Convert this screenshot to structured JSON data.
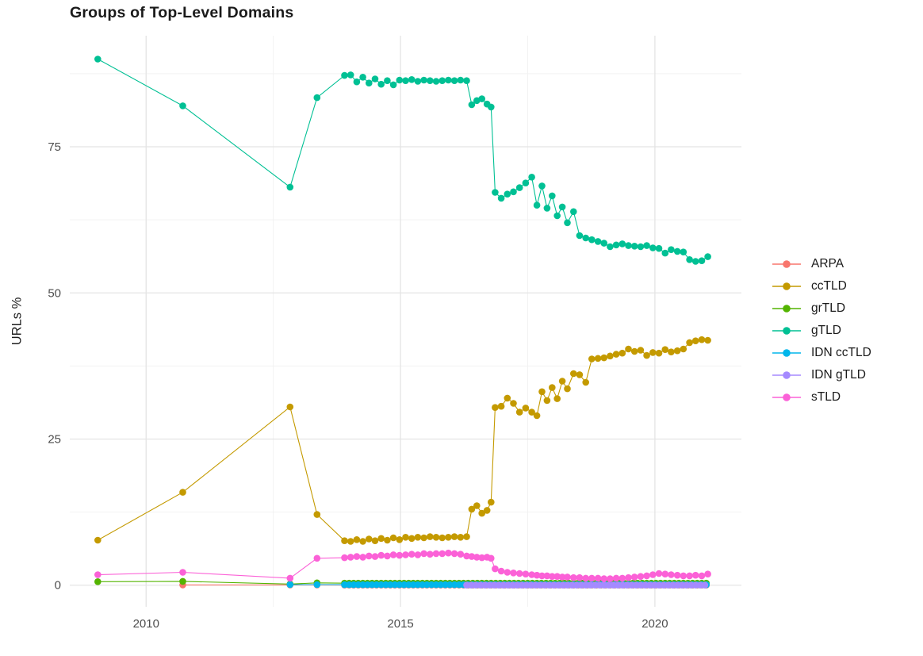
{
  "title": "Groups of Top-Level Domains",
  "colors": {
    "background": "#FFFFFF",
    "grid_major": "#E4E4E4",
    "grid_minor": "#F2F2F2",
    "tick_label": "#4D4D4D",
    "title_text": "#1A1A1A"
  },
  "chart_data": {
    "type": "line",
    "title": "Groups of Top-Level Domains",
    "xlabel": "",
    "ylabel": "URLs %",
    "grid": true,
    "legend_position": "right",
    "x_ticks": [
      "2010",
      "2015",
      "2020"
    ],
    "x_tick_values": [
      2010,
      2015,
      2020
    ],
    "x_minor": [
      2012.5,
      2017.5
    ],
    "y_ticks": [
      "0",
      "25",
      "50",
      "75"
    ],
    "y_tick_values": [
      0,
      25,
      50,
      75
    ],
    "y_minor": [
      12.5,
      37.5,
      62.5,
      87.5
    ],
    "x_range": [
      2008.5,
      2021.7
    ],
    "y_range": [
      -3.7,
      94
    ],
    "series": [
      {
        "name": "ARPA",
        "color": "#F8766D",
        "points": [
          [
            2010.72,
            0.05
          ],
          [
            2012.83,
            0.04
          ],
          [
            2013.36,
            0.04
          ]
        ],
        "flat": {
          "from": 2013.9,
          "to": 2021.04,
          "step": 0.09,
          "value": 0.02
        }
      },
      {
        "name": "ccTLD",
        "color": "#C49A00",
        "points": [
          [
            2009.05,
            7.7
          ],
          [
            2010.72,
            15.9
          ],
          [
            2012.83,
            30.5
          ],
          [
            2013.36,
            12.1
          ],
          [
            2013.9,
            7.6
          ],
          [
            2014.02,
            7.5
          ],
          [
            2014.14,
            7.8
          ],
          [
            2014.26,
            7.5
          ],
          [
            2014.38,
            7.9
          ],
          [
            2014.5,
            7.6
          ],
          [
            2014.62,
            8.0
          ],
          [
            2014.74,
            7.7
          ],
          [
            2014.86,
            8.1
          ],
          [
            2014.98,
            7.8
          ],
          [
            2015.1,
            8.2
          ],
          [
            2015.22,
            8.0
          ],
          [
            2015.34,
            8.2
          ],
          [
            2015.46,
            8.1
          ],
          [
            2015.58,
            8.3
          ],
          [
            2015.7,
            8.2
          ],
          [
            2015.82,
            8.1
          ],
          [
            2015.94,
            8.2
          ],
          [
            2016.06,
            8.3
          ],
          [
            2016.18,
            8.2
          ],
          [
            2016.3,
            8.3
          ],
          [
            2016.4,
            13.0
          ],
          [
            2016.5,
            13.6
          ],
          [
            2016.6,
            12.3
          ],
          [
            2016.7,
            12.8
          ],
          [
            2016.78,
            14.2
          ],
          [
            2016.86,
            30.4
          ],
          [
            2016.98,
            30.6
          ],
          [
            2017.1,
            32.0
          ],
          [
            2017.22,
            31.1
          ],
          [
            2017.34,
            29.6
          ],
          [
            2017.46,
            30.3
          ],
          [
            2017.58,
            29.6
          ],
          [
            2017.68,
            29.0
          ],
          [
            2017.78,
            33.1
          ],
          [
            2017.88,
            31.6
          ],
          [
            2017.98,
            33.8
          ],
          [
            2018.08,
            31.9
          ],
          [
            2018.18,
            34.9
          ],
          [
            2018.28,
            33.6
          ],
          [
            2018.4,
            36.2
          ],
          [
            2018.52,
            36.0
          ],
          [
            2018.64,
            34.7
          ],
          [
            2018.76,
            38.7
          ],
          [
            2018.88,
            38.8
          ],
          [
            2019.0,
            38.9
          ],
          [
            2019.12,
            39.2
          ],
          [
            2019.24,
            39.5
          ],
          [
            2019.36,
            39.7
          ],
          [
            2019.48,
            40.4
          ],
          [
            2019.6,
            40.0
          ],
          [
            2019.72,
            40.2
          ],
          [
            2019.84,
            39.3
          ],
          [
            2019.96,
            39.8
          ],
          [
            2020.08,
            39.7
          ],
          [
            2020.2,
            40.3
          ],
          [
            2020.32,
            39.9
          ],
          [
            2020.44,
            40.1
          ],
          [
            2020.56,
            40.4
          ],
          [
            2020.68,
            41.5
          ],
          [
            2020.8,
            41.8
          ],
          [
            2020.92,
            42.0
          ],
          [
            2021.04,
            41.9
          ]
        ]
      },
      {
        "name": "grTLD",
        "color": "#53B400",
        "points": [
          [
            2009.05,
            0.6
          ],
          [
            2010.72,
            0.65
          ],
          [
            2012.83,
            0.2
          ],
          [
            2013.36,
            0.4
          ]
        ],
        "flat": {
          "from": 2013.9,
          "to": 2021.04,
          "step": 0.09,
          "value": 0.35
        }
      },
      {
        "name": "gTLD",
        "color": "#00C094",
        "points": [
          [
            2009.05,
            90.0
          ],
          [
            2010.72,
            82.0
          ],
          [
            2012.83,
            68.1
          ],
          [
            2013.36,
            83.4
          ],
          [
            2013.9,
            87.2
          ],
          [
            2014.02,
            87.3
          ],
          [
            2014.14,
            86.1
          ],
          [
            2014.26,
            86.9
          ],
          [
            2014.38,
            85.9
          ],
          [
            2014.5,
            86.6
          ],
          [
            2014.62,
            85.7
          ],
          [
            2014.74,
            86.3
          ],
          [
            2014.86,
            85.6
          ],
          [
            2014.98,
            86.4
          ],
          [
            2015.1,
            86.3
          ],
          [
            2015.22,
            86.5
          ],
          [
            2015.34,
            86.2
          ],
          [
            2015.46,
            86.4
          ],
          [
            2015.58,
            86.3
          ],
          [
            2015.7,
            86.2
          ],
          [
            2015.82,
            86.3
          ],
          [
            2015.94,
            86.4
          ],
          [
            2016.06,
            86.3
          ],
          [
            2016.18,
            86.4
          ],
          [
            2016.3,
            86.3
          ],
          [
            2016.4,
            82.2
          ],
          [
            2016.5,
            82.9
          ],
          [
            2016.6,
            83.2
          ],
          [
            2016.7,
            82.3
          ],
          [
            2016.78,
            81.8
          ],
          [
            2016.86,
            67.2
          ],
          [
            2016.98,
            66.2
          ],
          [
            2017.1,
            66.9
          ],
          [
            2017.22,
            67.3
          ],
          [
            2017.34,
            68.0
          ],
          [
            2017.46,
            68.8
          ],
          [
            2017.58,
            69.8
          ],
          [
            2017.68,
            65.0
          ],
          [
            2017.78,
            68.3
          ],
          [
            2017.88,
            64.5
          ],
          [
            2017.98,
            66.6
          ],
          [
            2018.08,
            63.2
          ],
          [
            2018.18,
            64.7
          ],
          [
            2018.28,
            62.0
          ],
          [
            2018.4,
            63.9
          ],
          [
            2018.52,
            59.8
          ],
          [
            2018.64,
            59.4
          ],
          [
            2018.76,
            59.1
          ],
          [
            2018.88,
            58.8
          ],
          [
            2019.0,
            58.5
          ],
          [
            2019.12,
            57.9
          ],
          [
            2019.24,
            58.2
          ],
          [
            2019.36,
            58.4
          ],
          [
            2019.48,
            58.1
          ],
          [
            2019.6,
            58.0
          ],
          [
            2019.72,
            57.9
          ],
          [
            2019.84,
            58.1
          ],
          [
            2019.96,
            57.7
          ],
          [
            2020.08,
            57.6
          ],
          [
            2020.2,
            56.8
          ],
          [
            2020.32,
            57.4
          ],
          [
            2020.44,
            57.1
          ],
          [
            2020.56,
            57.0
          ],
          [
            2020.68,
            55.7
          ],
          [
            2020.8,
            55.4
          ],
          [
            2020.92,
            55.5
          ],
          [
            2021.04,
            56.2
          ]
        ]
      },
      {
        "name": "IDN ccTLD",
        "color": "#00B6EB",
        "points": [
          [
            2012.83,
            0.1
          ],
          [
            2013.36,
            0.1
          ]
        ],
        "flat": {
          "from": 2013.9,
          "to": 2021.04,
          "step": 0.09,
          "value": 0.08
        }
      },
      {
        "name": "IDN gTLD",
        "color": "#A58AFF",
        "points": [],
        "flat": {
          "from": 2016.3,
          "to": 2021.04,
          "step": 0.09,
          "value": 0.02
        }
      },
      {
        "name": "sTLD",
        "color": "#FB61D7",
        "points": [
          [
            2009.05,
            1.8
          ],
          [
            2010.72,
            2.2
          ],
          [
            2012.83,
            1.2
          ],
          [
            2013.36,
            4.6
          ],
          [
            2013.9,
            4.7
          ],
          [
            2014.02,
            4.8
          ],
          [
            2014.14,
            4.9
          ],
          [
            2014.26,
            4.8
          ],
          [
            2014.38,
            5.0
          ],
          [
            2014.5,
            4.9
          ],
          [
            2014.62,
            5.1
          ],
          [
            2014.74,
            5.0
          ],
          [
            2014.86,
            5.2
          ],
          [
            2014.98,
            5.1
          ],
          [
            2015.1,
            5.2
          ],
          [
            2015.22,
            5.3
          ],
          [
            2015.34,
            5.2
          ],
          [
            2015.46,
            5.4
          ],
          [
            2015.58,
            5.3
          ],
          [
            2015.7,
            5.4
          ],
          [
            2015.82,
            5.4
          ],
          [
            2015.94,
            5.5
          ],
          [
            2016.06,
            5.4
          ],
          [
            2016.18,
            5.3
          ],
          [
            2016.3,
            5.0
          ],
          [
            2016.4,
            4.9
          ],
          [
            2016.5,
            4.8
          ],
          [
            2016.6,
            4.7
          ],
          [
            2016.7,
            4.8
          ],
          [
            2016.78,
            4.6
          ],
          [
            2016.86,
            2.8
          ],
          [
            2016.98,
            2.4
          ],
          [
            2017.1,
            2.2
          ],
          [
            2017.22,
            2.1
          ],
          [
            2017.34,
            2.0
          ],
          [
            2017.46,
            1.9
          ],
          [
            2017.58,
            1.8
          ],
          [
            2017.68,
            1.7
          ],
          [
            2017.78,
            1.6
          ],
          [
            2017.88,
            1.6
          ],
          [
            2017.98,
            1.5
          ],
          [
            2018.08,
            1.5
          ],
          [
            2018.18,
            1.4
          ],
          [
            2018.28,
            1.4
          ],
          [
            2018.4,
            1.3
          ],
          [
            2018.52,
            1.3
          ],
          [
            2018.64,
            1.2
          ],
          [
            2018.76,
            1.2
          ],
          [
            2018.88,
            1.2
          ],
          [
            2019.0,
            1.1
          ],
          [
            2019.12,
            1.1
          ],
          [
            2019.24,
            1.2
          ],
          [
            2019.36,
            1.2
          ],
          [
            2019.48,
            1.3
          ],
          [
            2019.6,
            1.4
          ],
          [
            2019.72,
            1.5
          ],
          [
            2019.84,
            1.6
          ],
          [
            2019.96,
            1.8
          ],
          [
            2020.08,
            2.0
          ],
          [
            2020.2,
            1.9
          ],
          [
            2020.32,
            1.8
          ],
          [
            2020.44,
            1.7
          ],
          [
            2020.56,
            1.6
          ],
          [
            2020.68,
            1.6
          ],
          [
            2020.8,
            1.7
          ],
          [
            2020.92,
            1.6
          ],
          [
            2021.04,
            1.9
          ]
        ]
      }
    ]
  }
}
